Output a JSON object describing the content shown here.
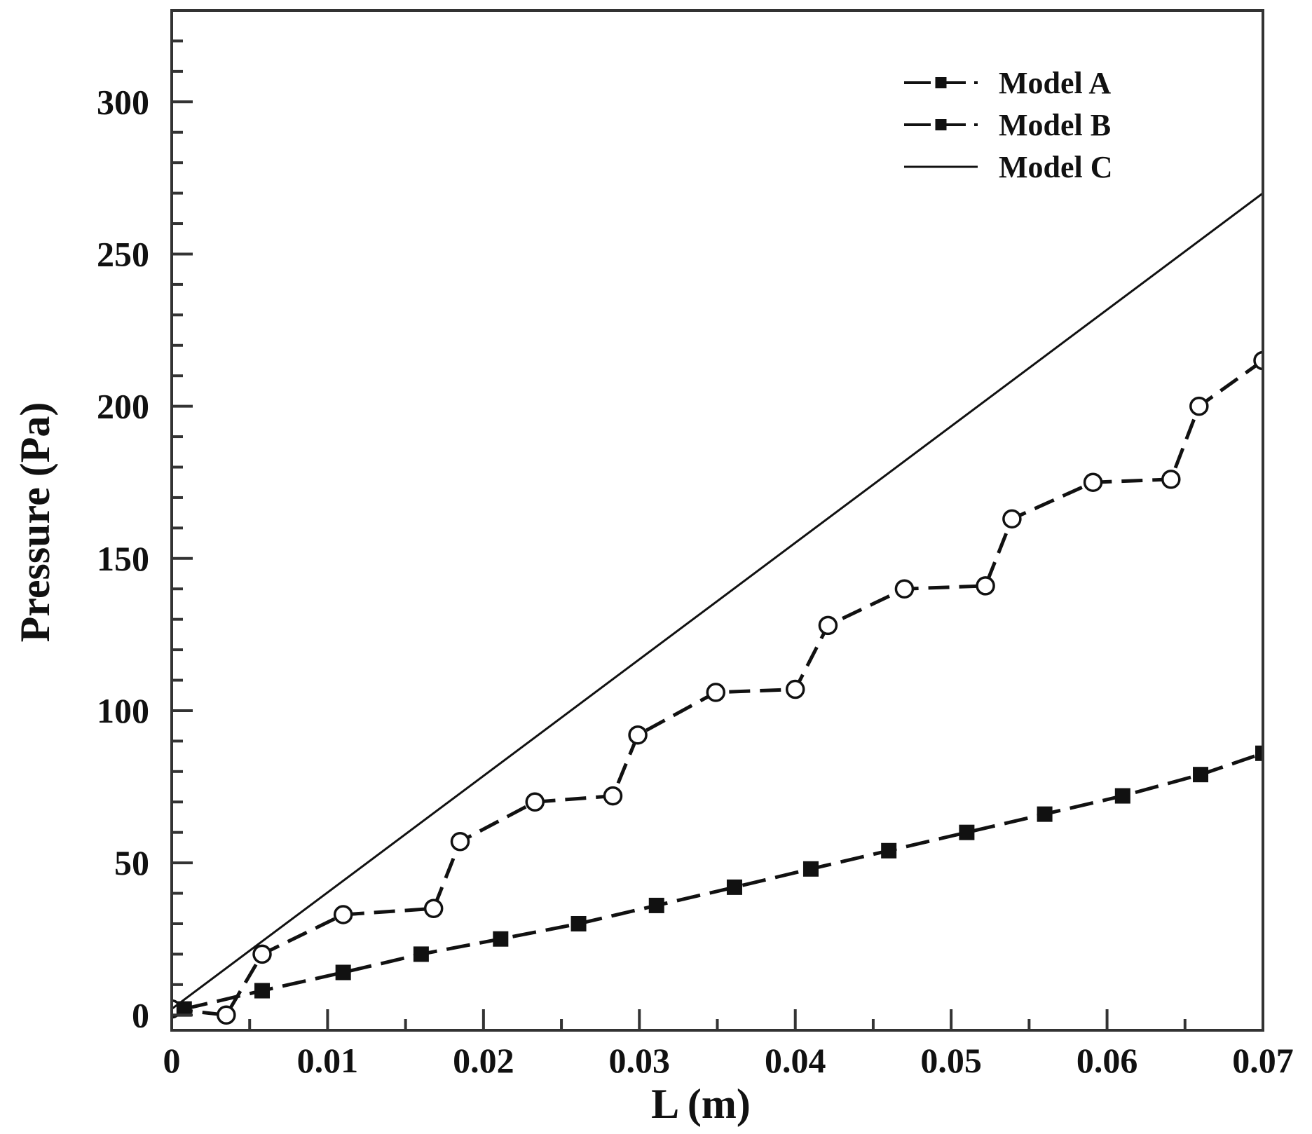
{
  "chart_data": {
    "type": "line",
    "xlabel": "L (m)",
    "ylabel": "Pressure (Pa)",
    "xlim": [
      0,
      0.07
    ],
    "ylim": [
      -5,
      330
    ],
    "xticks": [
      0,
      0.01,
      0.02,
      0.03,
      0.04,
      0.05,
      0.06,
      0.07
    ],
    "xtick_labels": [
      "0",
      "0.01",
      "0.02",
      "0.03",
      "0.04",
      "0.05",
      "0.06",
      "0.07"
    ],
    "yticks": [
      0,
      50,
      100,
      150,
      200,
      250,
      300
    ],
    "ytick_labels": [
      "0",
      "50",
      "100",
      "150",
      "200",
      "250",
      "300"
    ],
    "grid": false,
    "legend_position": "top-right",
    "colors": {
      "line": "#111111",
      "marker_open_fill": "#ffffff",
      "background": "#ffffff"
    },
    "series": [
      {
        "name": "Model A",
        "style": "dashed-open-circle",
        "x": [
          0,
          0.0035,
          0.0058,
          0.011,
          0.0168,
          0.0185,
          0.0233,
          0.0283,
          0.0299,
          0.0349,
          0.04,
          0.0421,
          0.047,
          0.0522,
          0.0539,
          0.0591,
          0.0641,
          0.0659,
          0.07
        ],
        "y": [
          2,
          0,
          20,
          33,
          35,
          57,
          70,
          72,
          92,
          106,
          107,
          128,
          140,
          141,
          163,
          175,
          176,
          200,
          215
        ]
      },
      {
        "name": "Model B",
        "style": "dashed-filled-square",
        "x": [
          0.0008,
          0.0058,
          0.011,
          0.016,
          0.0211,
          0.0261,
          0.0311,
          0.0361,
          0.041,
          0.046,
          0.051,
          0.056,
          0.061,
          0.066,
          0.07
        ],
        "y": [
          2,
          8,
          14,
          20,
          25,
          30,
          36,
          42,
          48,
          54,
          60,
          66,
          72,
          79,
          86
        ]
      },
      {
        "name": "Model C",
        "style": "solid",
        "x": [
          0,
          0.07
        ],
        "y": [
          2,
          270
        ]
      }
    ]
  }
}
